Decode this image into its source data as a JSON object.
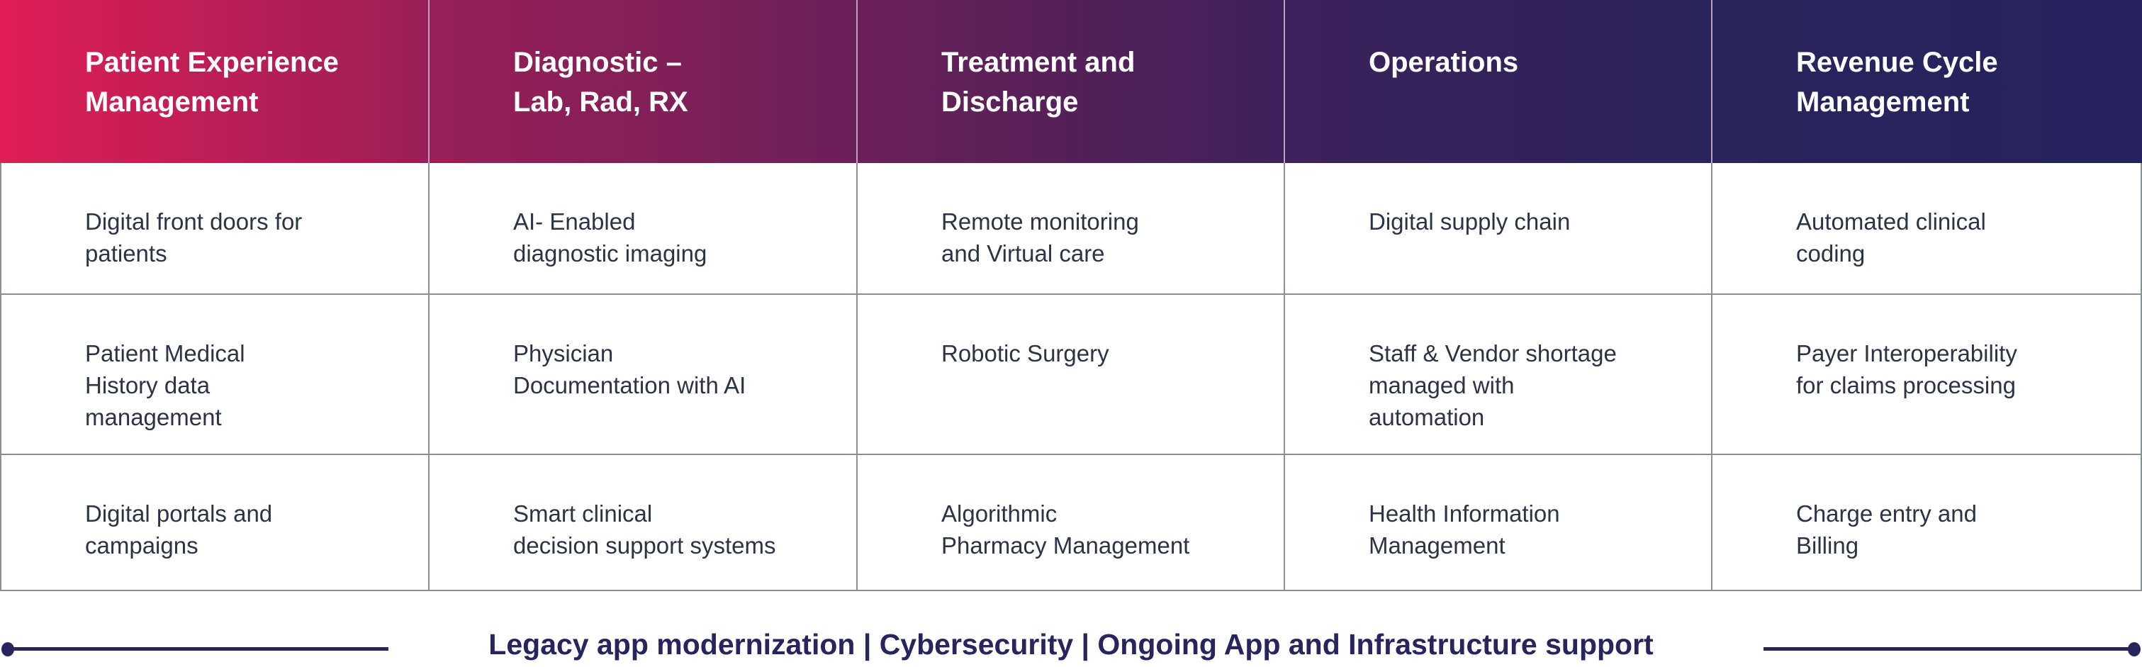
{
  "columns": [
    {
      "header": "Patient Experience\nManagement",
      "items": [
        "Digital front doors for\npatients",
        "Patient Medical\nHistory data\nmanagement",
        "Digital portals and\ncampaigns"
      ]
    },
    {
      "header": "Diagnostic –\nLab, Rad, RX",
      "items": [
        "AI- Enabled\ndiagnostic imaging",
        "Physician\nDocumentation with AI",
        "Smart clinical\ndecision support systems"
      ]
    },
    {
      "header": "Treatment and\nDischarge",
      "items": [
        "Remote monitoring\nand Virtual care",
        "Robotic Surgery",
        "Algorithmic\nPharmacy Management"
      ]
    },
    {
      "header": "Operations",
      "items": [
        "Digital supply chain",
        "Staff & Vendor shortage\nmanaged with\nautomation",
        "Health Information\nManagement"
      ]
    },
    {
      "header": "Revenue Cycle\nManagement",
      "items": [
        "Automated clinical\ncoding",
        "Payer Interoperability\nfor claims processing",
        "Charge entry and\nBilling"
      ]
    }
  ],
  "footer": {
    "text": "Legacy app modernization | Cybersecurity | Ongoing App and Infrastructure support"
  },
  "colors": {
    "gradient_start": "#e01e55",
    "gradient_end": "#24235d",
    "footer": "#27245e",
    "text": "#2b3345"
  }
}
